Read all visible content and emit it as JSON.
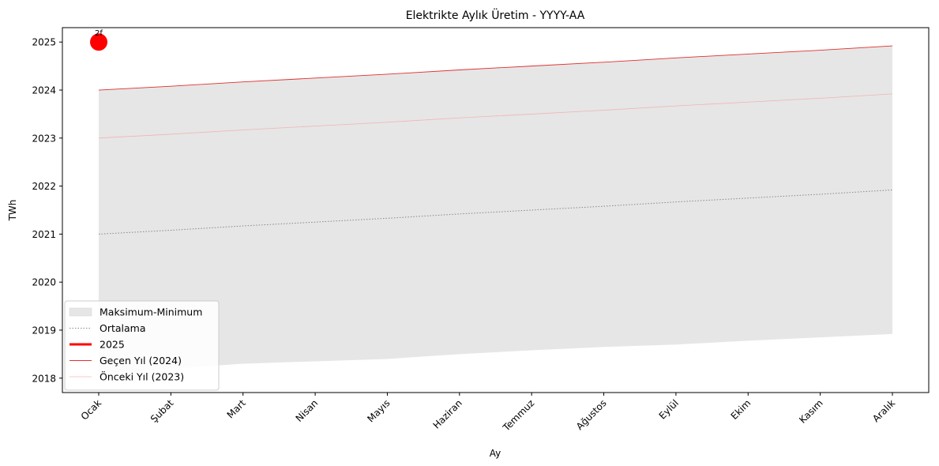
{
  "chart_data": {
    "type": "line",
    "title": "Elektrikte Aylık Üretim - YYYY-AA",
    "xlabel": "Ay",
    "ylabel": "TWh",
    "categories": [
      "Ocak",
      "Şubat",
      "Mart",
      "Nisan",
      "Mayıs",
      "Haziran",
      "Temmuz",
      "Ağustos",
      "Eylül",
      "Ekim",
      "Kasım",
      "Aralık"
    ],
    "ylim": [
      2017.7,
      2025.3
    ],
    "yticks": [
      2018,
      2019,
      2020,
      2021,
      2022,
      2023,
      2024,
      2025
    ],
    "band": {
      "name": "Maksimum-Minimum",
      "color": "#e6e6e6",
      "upper": [
        2024.0,
        2024.08,
        2024.17,
        2024.25,
        2024.33,
        2024.42,
        2024.5,
        2024.58,
        2024.67,
        2024.75,
        2024.83,
        2024.92
      ],
      "lower": [
        2018.1,
        2018.2,
        2018.3,
        2018.35,
        2018.4,
        2018.5,
        2018.58,
        2018.65,
        2018.7,
        2018.78,
        2018.85,
        2018.92
      ]
    },
    "series": [
      {
        "name": "Ortalama",
        "color": "#888888",
        "style": "dotted",
        "values": [
          2021.0,
          2021.08,
          2021.17,
          2021.25,
          2021.33,
          2021.42,
          2021.5,
          2021.58,
          2021.67,
          2021.75,
          2021.83,
          2021.92
        ]
      },
      {
        "name": "2025",
        "color": "#ff0000",
        "style": "thick",
        "values": [
          2025.0,
          null,
          null,
          null,
          null,
          null,
          null,
          null,
          null,
          null,
          null,
          null
        ]
      },
      {
        "name": "Geçen Yıl (2024)",
        "color": "#e03030",
        "style": "thin",
        "values": [
          2024.0,
          2024.08,
          2024.17,
          2024.25,
          2024.33,
          2024.42,
          2024.5,
          2024.58,
          2024.67,
          2024.75,
          2024.83,
          2024.92
        ]
      },
      {
        "name": "Önceki Yıl (2023)",
        "color": "#f4a8a8",
        "style": "faint",
        "values": [
          2023.0,
          2023.08,
          2023.17,
          2023.25,
          2023.33,
          2023.42,
          2023.5,
          2023.58,
          2023.67,
          2023.75,
          2023.83,
          2023.92
        ]
      }
    ],
    "annotation": {
      "text": "2f",
      "x_index": 0,
      "y": 2025.0
    },
    "legend": "lower-left",
    "grid": false
  }
}
